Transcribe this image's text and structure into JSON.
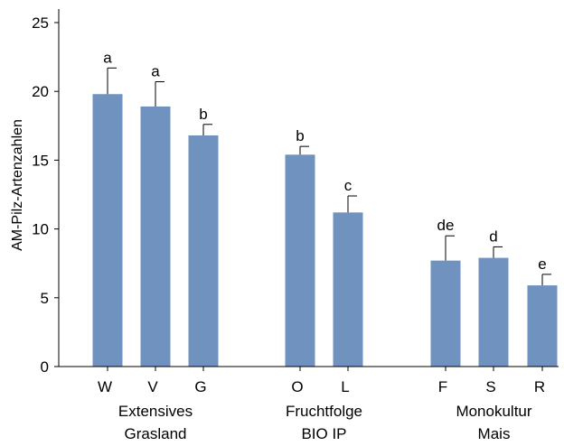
{
  "chart_data": {
    "type": "bar",
    "ylabel": "AM-Pilz-Artenzahlen",
    "ylim": [
      0,
      25
    ],
    "yticks": [
      0,
      5,
      10,
      15,
      20,
      25
    ],
    "grid": false,
    "bar_color": "#7092be",
    "categories": [
      "W",
      "V",
      "G",
      "O",
      "L",
      "F",
      "S",
      "R"
    ],
    "values": [
      19.8,
      18.9,
      16.8,
      15.4,
      11.2,
      7.7,
      7.9,
      5.9
    ],
    "errors": [
      1.9,
      1.8,
      0.8,
      0.6,
      1.2,
      1.8,
      0.8,
      0.8
    ],
    "significance": [
      "a",
      "a",
      "b",
      "b",
      "c",
      "de",
      "d",
      "e"
    ],
    "groups": [
      {
        "lines": [
          "Extensives",
          "Grasland"
        ],
        "members": [
          0,
          1,
          2
        ]
      },
      {
        "lines": [
          "Fruchtfolge",
          "BIO IP"
        ],
        "members": [
          3,
          4
        ]
      },
      {
        "lines": [
          "Monokultur",
          "Mais"
        ],
        "members": [
          5,
          6,
          7
        ]
      }
    ]
  }
}
